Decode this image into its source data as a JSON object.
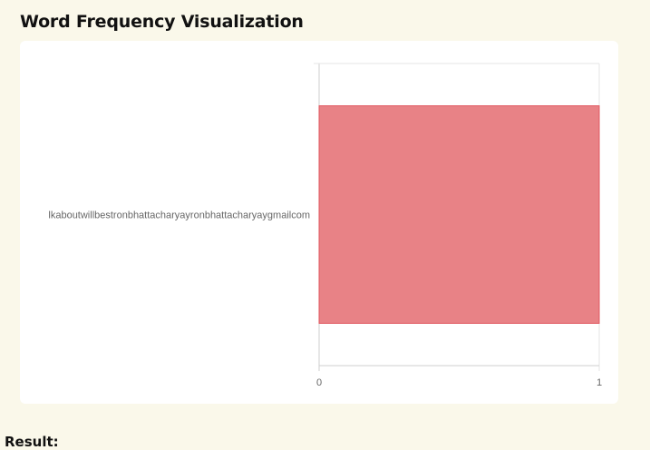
{
  "page": {
    "title": "Word Frequency Visualization",
    "result_label": "Result:"
  },
  "chart_data": {
    "type": "bar",
    "orientation": "horizontal",
    "categories": [
      "lkaboutwillbestronbhattacharyayronbhattacharyaygmailcom"
    ],
    "values": [
      1
    ],
    "xlim": [
      0,
      1
    ],
    "xticks": [
      "0",
      "1"
    ],
    "grid": true,
    "bar_color": "#e88286",
    "bar_border_color": "#e05a62"
  }
}
